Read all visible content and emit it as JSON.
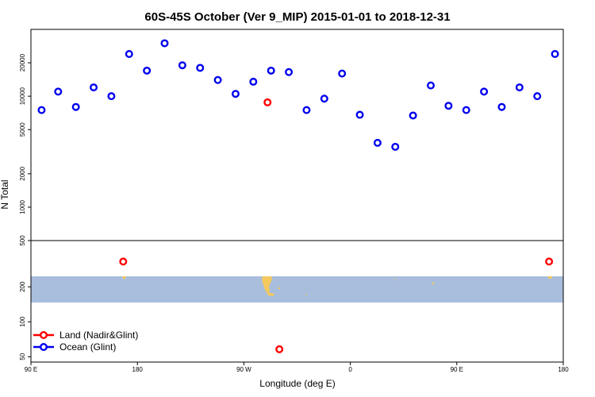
{
  "chart_data": {
    "type": "scatter",
    "title": "60S-45S October (Ver 9_MIP)   2015-01-01 to 2018-12-31",
    "xlabel": "Longitude (deg E)",
    "ylabel": "N Total",
    "xscale": "longitude from 90 E through 180 to 180 E",
    "xlim": [
      90,
      540
    ],
    "x_ticks": [
      {
        "value": 90,
        "label": "90 E"
      },
      {
        "value": 180,
        "label": "180"
      },
      {
        "value": 270,
        "label": "90 W"
      },
      {
        "value": 360,
        "label": "0"
      },
      {
        "value": 450,
        "label": "90 E"
      },
      {
        "value": 540,
        "label": "180"
      }
    ],
    "upper_panel": {
      "yscale": "log",
      "ylim": [
        500,
        40000
      ],
      "y_ticks": [
        500,
        1000,
        2000,
        5000,
        10000,
        20000
      ]
    },
    "lower_panel": {
      "yscale": "log",
      "ylim": [
        45,
        500
      ],
      "y_ticks": [
        50,
        100,
        200
      ],
      "map_band": "ocean strip with land masses at 60S-45S",
      "map_colors": {
        "ocean": "#a8bedc",
        "land": "#f4c95d"
      }
    },
    "legend": {
      "placement": "bottom-left",
      "entries": [
        {
          "label": "Land (Nadir&Glint)",
          "color": "#ff0000"
        },
        {
          "label": "Ocean (Glint)",
          "color": "#0000ee"
        }
      ]
    },
    "series": [
      {
        "name": "Ocean (Glint)",
        "color": "#0000ee",
        "points": [
          {
            "x": 99,
            "y": 7500
          },
          {
            "x": 113,
            "y": 11000
          },
          {
            "x": 128,
            "y": 8000
          },
          {
            "x": 143,
            "y": 12000
          },
          {
            "x": 158,
            "y": 10000
          },
          {
            "x": 173,
            "y": 24000
          },
          {
            "x": 188,
            "y": 17000
          },
          {
            "x": 203,
            "y": 30000
          },
          {
            "x": 218,
            "y": 19000
          },
          {
            "x": 233,
            "y": 18000
          },
          {
            "x": 248,
            "y": 14000
          },
          {
            "x": 263,
            "y": 10500
          },
          {
            "x": 278,
            "y": 13500
          },
          {
            "x": 293,
            "y": 17000
          },
          {
            "x": 308,
            "y": 16500
          },
          {
            "x": 323,
            "y": 7500
          },
          {
            "x": 338,
            "y": 9500
          },
          {
            "x": 353,
            "y": 16000
          },
          {
            "x": 368,
            "y": 6800
          },
          {
            "x": 383,
            "y": 3800
          },
          {
            "x": 398,
            "y": 3500
          },
          {
            "x": 413,
            "y": 6700
          },
          {
            "x": 428,
            "y": 12500
          },
          {
            "x": 443,
            "y": 8200
          },
          {
            "x": 458,
            "y": 7500
          },
          {
            "x": 473,
            "y": 11000
          },
          {
            "x": 488,
            "y": 8000
          },
          {
            "x": 503,
            "y": 12000
          },
          {
            "x": 518,
            "y": 10000
          },
          {
            "x": 533,
            "y": 24000
          }
        ]
      },
      {
        "name": "Land (Nadir&Glint)",
        "color": "#ff0000",
        "points": [
          {
            "x": 168,
            "y": 330
          },
          {
            "x": 290,
            "y": 8800
          },
          {
            "x": 300,
            "y": 58
          },
          {
            "x": 528,
            "y": 330
          }
        ]
      }
    ]
  }
}
